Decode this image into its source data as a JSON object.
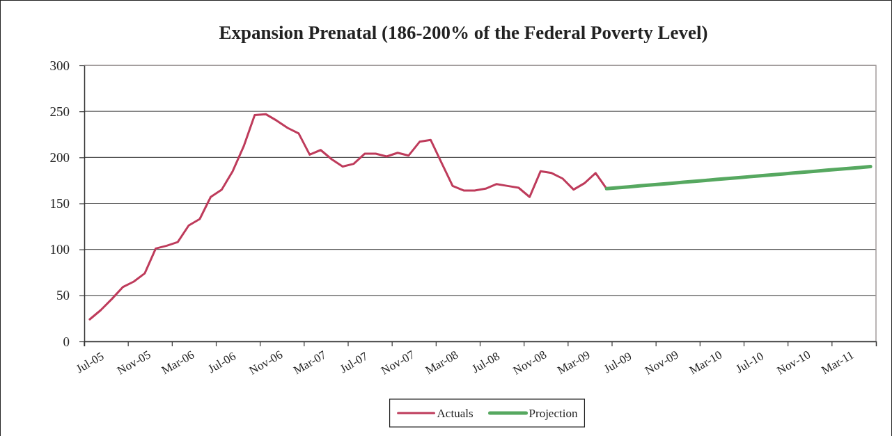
{
  "chart_data": {
    "type": "line",
    "title": "Expansion Prenatal (186-200% of the Federal Poverty Level)",
    "categories": [
      "Jul-05",
      null,
      null,
      null,
      "Nov-05",
      null,
      null,
      null,
      "Mar-06",
      null,
      null,
      null,
      "Jul-06",
      null,
      null,
      null,
      "Nov-06",
      null,
      null,
      null,
      "Mar-07",
      null,
      null,
      null,
      "Jul-07",
      null,
      null,
      null,
      "Nov-07",
      null,
      null,
      null,
      "Mar-08",
      null,
      null,
      null,
      "Jul-08",
      null,
      null,
      null,
      "Nov-08",
      null,
      null,
      null,
      "Mar-09",
      null,
      null,
      null,
      "Jul-09",
      null,
      null,
      null,
      "Nov-09",
      null,
      null,
      null,
      "Mar-10",
      null,
      null,
      null,
      "Jul-10",
      null,
      null,
      null,
      "Nov-10",
      null,
      null,
      null,
      "Mar-11",
      null,
      null,
      null
    ],
    "series": [
      {
        "name": "Actuals",
        "color": "#be3b5b",
        "values": [
          24,
          34,
          46,
          59,
          65,
          74,
          101,
          104,
          108,
          126,
          133,
          157,
          165,
          185,
          212,
          246,
          247,
          240,
          232,
          226,
          203,
          208,
          198,
          190,
          193,
          204,
          204,
          201,
          205,
          202,
          217,
          219,
          194,
          169,
          164,
          164,
          166,
          171,
          169,
          167,
          157,
          185,
          183,
          177,
          165,
          172,
          183,
          166,
          null,
          null,
          null,
          null,
          null,
          null,
          null,
          null,
          null,
          null,
          null,
          null,
          null,
          null,
          null,
          null,
          null,
          null,
          null,
          null,
          null,
          null,
          null,
          null
        ]
      },
      {
        "name": "Projection",
        "color": "#56a860",
        "values": [
          null,
          null,
          null,
          null,
          null,
          null,
          null,
          null,
          null,
          null,
          null,
          null,
          null,
          null,
          null,
          null,
          null,
          null,
          null,
          null,
          null,
          null,
          null,
          null,
          null,
          null,
          null,
          null,
          null,
          null,
          null,
          null,
          null,
          null,
          null,
          null,
          null,
          null,
          null,
          null,
          null,
          null,
          null,
          null,
          null,
          null,
          null,
          166,
          167,
          168,
          169,
          170,
          171,
          172,
          173,
          174,
          175,
          176,
          177,
          178,
          179,
          180,
          181,
          182,
          183,
          184,
          185,
          186,
          187,
          188,
          189,
          190
        ]
      }
    ],
    "ylim": [
      0,
      300
    ],
    "yticks": [
      0,
      50,
      100,
      150,
      200,
      250,
      300
    ],
    "grid": "y",
    "legend": "bottom"
  }
}
